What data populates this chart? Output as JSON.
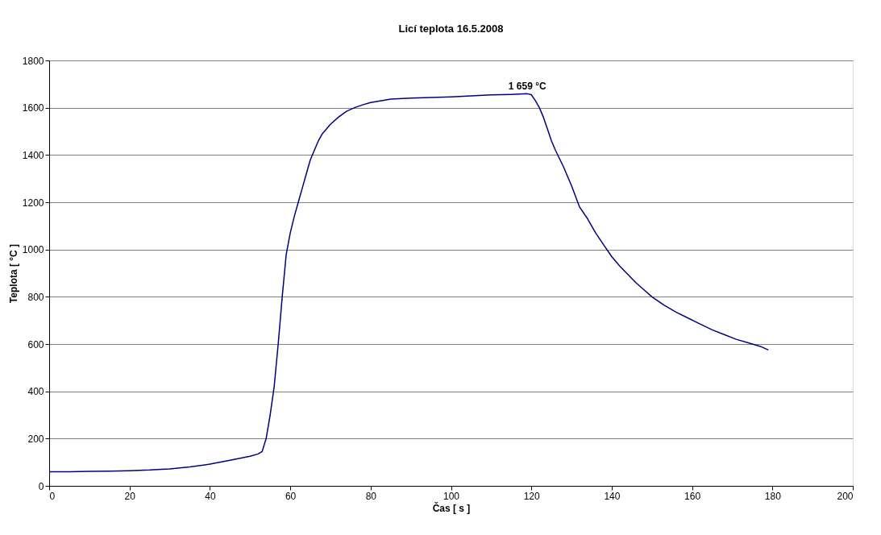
{
  "chart_data": {
    "type": "line",
    "title": "Licí teplota 16.5.2008",
    "xlabel": "Čas  [ s ]",
    "ylabel": "Teplota  [ °C ]",
    "xlim": [
      0,
      200
    ],
    "xticks": [
      0,
      20,
      40,
      60,
      80,
      100,
      120,
      140,
      160,
      180,
      200
    ],
    "ylim": [
      0,
      1800
    ],
    "yticks": [
      0,
      200,
      400,
      600,
      800,
      1000,
      1200,
      1400,
      1600,
      1800
    ],
    "grid": "y",
    "marker": "none",
    "line_style": "solid",
    "annotations": [
      {
        "text": "1 659 °C",
        "x": 119,
        "y": 1659
      }
    ],
    "series": [
      {
        "color": "#000080",
        "x": [
          0,
          5,
          10,
          15,
          20,
          25,
          30,
          35,
          40,
          45,
          50,
          52,
          53,
          54,
          55,
          56,
          57,
          58,
          59,
          60,
          61,
          62,
          63,
          64,
          65,
          66,
          67,
          68,
          70,
          72,
          74,
          76,
          78,
          80,
          85,
          90,
          95,
          100,
          105,
          110,
          115,
          119,
          120,
          121,
          122,
          123,
          124,
          125,
          126,
          128,
          130,
          132,
          134,
          136,
          138,
          140,
          142,
          144,
          146,
          148,
          150,
          153,
          156,
          159,
          162,
          165,
          168,
          171,
          174,
          177,
          179
        ],
        "values": [
          60,
          60,
          61,
          62,
          64,
          67,
          72,
          80,
          92,
          108,
          125,
          135,
          145,
          200,
          300,
          420,
          600,
          800,
          980,
          1070,
          1140,
          1200,
          1260,
          1320,
          1380,
          1420,
          1460,
          1490,
          1530,
          1560,
          1585,
          1600,
          1612,
          1622,
          1636,
          1641,
          1643,
          1646,
          1650,
          1654,
          1656,
          1659,
          1655,
          1630,
          1600,
          1560,
          1510,
          1460,
          1420,
          1350,
          1270,
          1180,
          1130,
          1070,
          1020,
          970,
          930,
          895,
          860,
          830,
          800,
          765,
          735,
          710,
          685,
          660,
          640,
          620,
          605,
          590,
          575
        ]
      }
    ]
  }
}
